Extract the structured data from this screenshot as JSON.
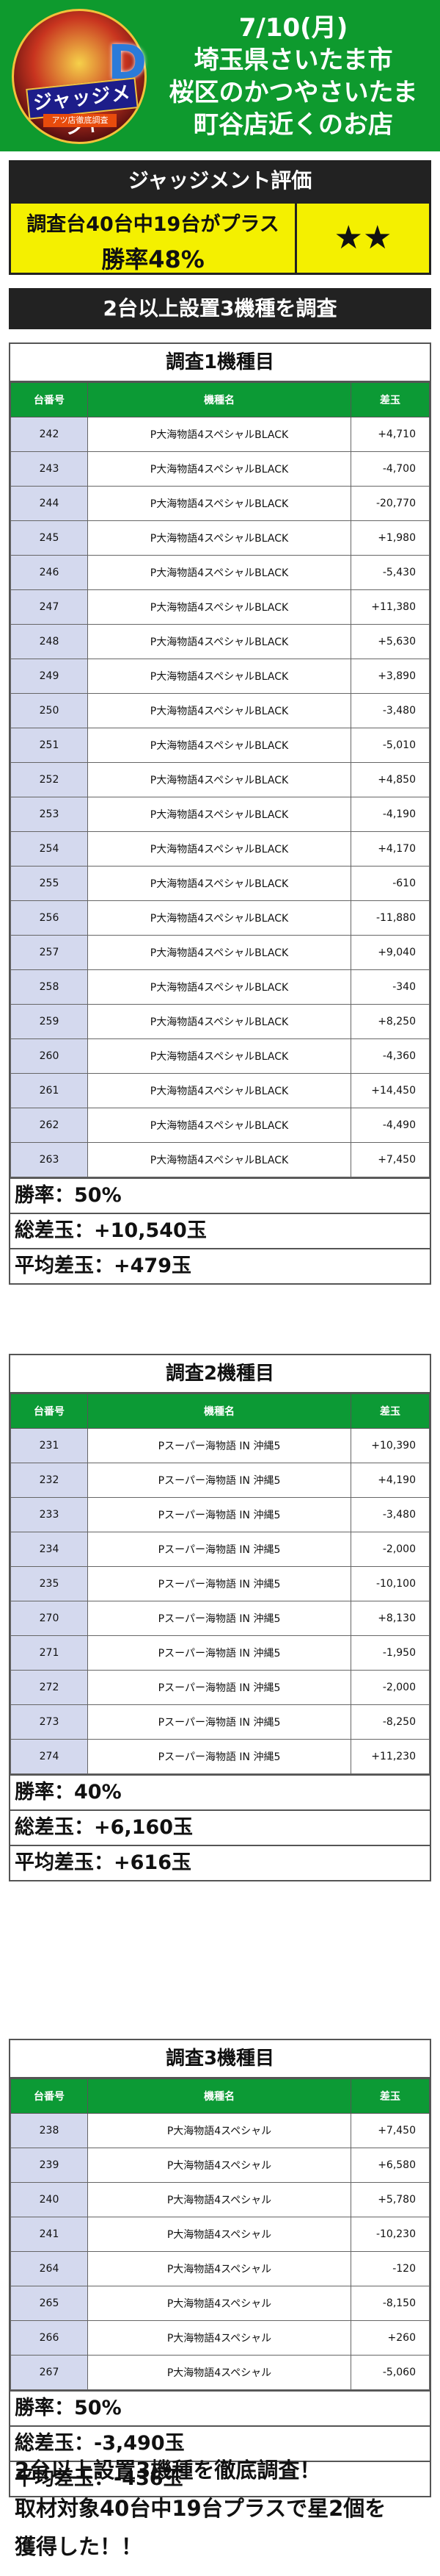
{
  "header": {
    "logo_text": "ジャッジメント",
    "logo_sub": "アツ店徹底調査",
    "logo_mark": "D",
    "line1": "7/10(月)",
    "line2": "埼玉県さいたま市",
    "line3": "桜区のかつやさいたま",
    "line4": "町谷店近くのお店"
  },
  "judgement": {
    "title": "ジャッジメント評価",
    "line1": "調査台40台中19台がプラス",
    "line2": "勝率48%",
    "stars": "★★"
  },
  "main_title": "2台以上設置3機種を調査",
  "table_headers": {
    "num": "台番号",
    "name": "機種名",
    "diff": "差玉"
  },
  "sections": [
    {
      "title": "調査1機種目",
      "rows": [
        {
          "num": "242",
          "name": "P大海物語4スペシャルBLACK",
          "diff": "+4,710"
        },
        {
          "num": "243",
          "name": "P大海物語4スペシャルBLACK",
          "diff": "-4,700"
        },
        {
          "num": "244",
          "name": "P大海物語4スペシャルBLACK",
          "diff": "-20,770"
        },
        {
          "num": "245",
          "name": "P大海物語4スペシャルBLACK",
          "diff": "+1,980"
        },
        {
          "num": "246",
          "name": "P大海物語4スペシャルBLACK",
          "diff": "-5,430"
        },
        {
          "num": "247",
          "name": "P大海物語4スペシャルBLACK",
          "diff": "+11,380"
        },
        {
          "num": "248",
          "name": "P大海物語4スペシャルBLACK",
          "diff": "+5,630"
        },
        {
          "num": "249",
          "name": "P大海物語4スペシャルBLACK",
          "diff": "+3,890"
        },
        {
          "num": "250",
          "name": "P大海物語4スペシャルBLACK",
          "diff": "-3,480"
        },
        {
          "num": "251",
          "name": "P大海物語4スペシャルBLACK",
          "diff": "-5,010"
        },
        {
          "num": "252",
          "name": "P大海物語4スペシャルBLACK",
          "diff": "+4,850"
        },
        {
          "num": "253",
          "name": "P大海物語4スペシャルBLACK",
          "diff": "-4,190"
        },
        {
          "num": "254",
          "name": "P大海物語4スペシャルBLACK",
          "diff": "+4,170"
        },
        {
          "num": "255",
          "name": "P大海物語4スペシャルBLACK",
          "diff": "-610"
        },
        {
          "num": "256",
          "name": "P大海物語4スペシャルBLACK",
          "diff": "-11,880"
        },
        {
          "num": "257",
          "name": "P大海物語4スペシャルBLACK",
          "diff": "+9,040"
        },
        {
          "num": "258",
          "name": "P大海物語4スペシャルBLACK",
          "diff": "-340"
        },
        {
          "num": "259",
          "name": "P大海物語4スペシャルBLACK",
          "diff": "+8,250"
        },
        {
          "num": "260",
          "name": "P大海物語4スペシャルBLACK",
          "diff": "-4,360"
        },
        {
          "num": "261",
          "name": "P大海物語4スペシャルBLACK",
          "diff": "+14,450"
        },
        {
          "num": "262",
          "name": "P大海物語4スペシャルBLACK",
          "diff": "-4,490"
        },
        {
          "num": "263",
          "name": "P大海物語4スペシャルBLACK",
          "diff": "+7,450"
        }
      ],
      "win_rate": "勝率：50%",
      "total": "総差玉：+10,540玉",
      "average": "平均差玉：+479玉"
    },
    {
      "title": "調査2機種目",
      "rows": [
        {
          "num": "231",
          "name": "Pスーパー海物語 IN 沖縄5",
          "diff": "+10,390"
        },
        {
          "num": "232",
          "name": "Pスーパー海物語 IN 沖縄5",
          "diff": "+4,190"
        },
        {
          "num": "233",
          "name": "Pスーパー海物語 IN 沖縄5",
          "diff": "-3,480"
        },
        {
          "num": "234",
          "name": "Pスーパー海物語 IN 沖縄5",
          "diff": "-2,000"
        },
        {
          "num": "235",
          "name": "Pスーパー海物語 IN 沖縄5",
          "diff": "-10,100"
        },
        {
          "num": "270",
          "name": "Pスーパー海物語 IN 沖縄5",
          "diff": "+8,130"
        },
        {
          "num": "271",
          "name": "Pスーパー海物語 IN 沖縄5",
          "diff": "-1,950"
        },
        {
          "num": "272",
          "name": "Pスーパー海物語 IN 沖縄5",
          "diff": "-2,000"
        },
        {
          "num": "273",
          "name": "Pスーパー海物語 IN 沖縄5",
          "diff": "-8,250"
        },
        {
          "num": "274",
          "name": "Pスーパー海物語 IN 沖縄5",
          "diff": "+11,230"
        }
      ],
      "win_rate": "勝率：40%",
      "total": "総差玉：+6,160玉",
      "average": "平均差玉：+616玉"
    },
    {
      "title": "調査3機種目",
      "rows": [
        {
          "num": "238",
          "name": "P大海物語4スペシャル",
          "diff": "+7,450"
        },
        {
          "num": "239",
          "name": "P大海物語4スペシャル",
          "diff": "+6,580"
        },
        {
          "num": "240",
          "name": "P大海物語4スペシャル",
          "diff": "+5,780"
        },
        {
          "num": "241",
          "name": "P大海物語4スペシャル",
          "diff": "-10,230"
        },
        {
          "num": "264",
          "name": "P大海物語4スペシャル",
          "diff": "-120"
        },
        {
          "num": "265",
          "name": "P大海物語4スペシャル",
          "diff": "-8,150"
        },
        {
          "num": "266",
          "name": "P大海物語4スペシャル",
          "diff": "+260"
        },
        {
          "num": "267",
          "name": "P大海物語4スペシャル",
          "diff": "-5,060"
        }
      ],
      "win_rate": "勝率：50%",
      "total": "総差玉：-3,490玉",
      "average": "平均差玉：-436玉"
    }
  ],
  "footer": {
    "line1": "2台以上設置3機種を徹底調査！",
    "line2": "取材対象40台中19台プラスで星2個を",
    "line3": "獲得した！！"
  }
}
